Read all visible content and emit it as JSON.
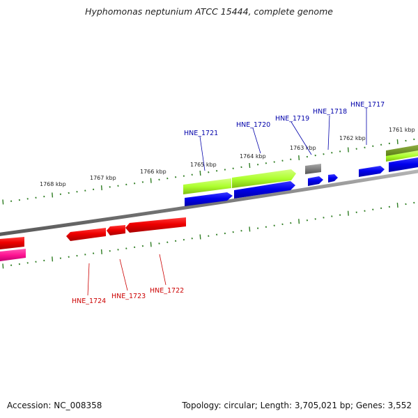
{
  "title": "Hyphomonas neptunium ATCC 15444, complete genome",
  "footer": {
    "accession": "Accession: NC_008358",
    "summary": "Topology: circular; Length: 3,705,021 bp; Genes: 3,552"
  },
  "colors": {
    "backbone": "#8a8a8a",
    "tick": "#2e7d22",
    "forward_blue": "#0000ee",
    "reverse_red": "#ee0000",
    "light_green": "#adff2f",
    "olive": "#6b8e23",
    "gray_feature": "#808080",
    "magenta": "#ff1493"
  },
  "scale_labels": [
    {
      "text": "1761 kbp"
    },
    {
      "text": "1762 kbp"
    },
    {
      "text": "1763 kbp"
    },
    {
      "text": "1764 kbp"
    },
    {
      "text": "1765 kbp"
    },
    {
      "text": "1766 kbp"
    },
    {
      "text": "1767 kbp"
    },
    {
      "text": "1768 kbp"
    }
  ],
  "gene_labels": [
    {
      "text": "HNE_1717",
      "strand": "forward"
    },
    {
      "text": "HNE_1718",
      "strand": "forward"
    },
    {
      "text": "HNE_1719",
      "strand": "forward"
    },
    {
      "text": "HNE_1720",
      "strand": "forward"
    },
    {
      "text": "HNE_1721",
      "strand": "forward"
    },
    {
      "text": "HNE_1722",
      "strand": "reverse"
    },
    {
      "text": "HNE_1723",
      "strand": "reverse"
    },
    {
      "text": "HNE_1724",
      "strand": "reverse"
    }
  ]
}
